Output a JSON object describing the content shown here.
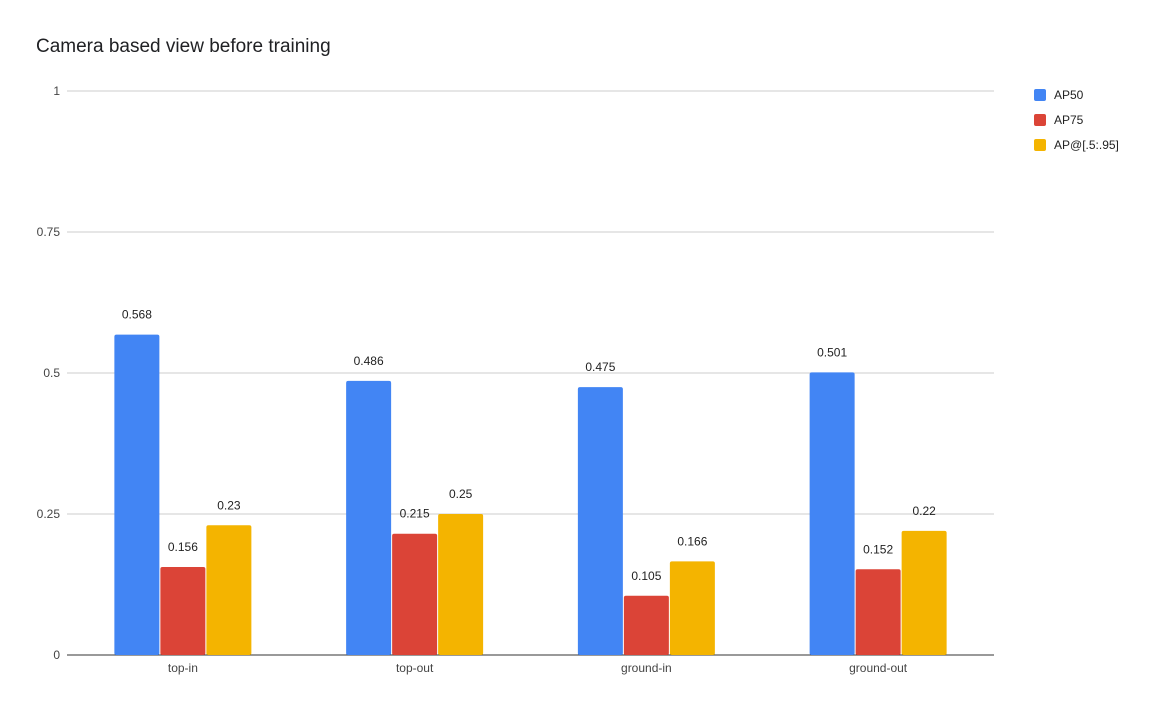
{
  "chart_data": {
    "type": "bar",
    "title": "Camera based view before training",
    "categories": [
      "top-in",
      "top-out",
      "ground-in",
      "ground-out"
    ],
    "series": [
      {
        "name": "AP50",
        "color": "#4285f4",
        "values": [
          0.568,
          0.486,
          0.475,
          0.501
        ]
      },
      {
        "name": "AP75",
        "color": "#db4437",
        "values": [
          0.156,
          0.215,
          0.105,
          0.152
        ]
      },
      {
        "name": "AP@[.5:.95]",
        "color": "#f4b400",
        "values": [
          0.23,
          0.25,
          0.166,
          0.22
        ]
      }
    ],
    "data_labels": [
      [
        "0.568",
        "0.486",
        "0.475",
        "0.501"
      ],
      [
        "0.156",
        "0.215",
        "0.105",
        "0.152"
      ],
      [
        "0.23",
        "0.25",
        "0.166",
        "0.22"
      ]
    ],
    "yticks": [
      {
        "value": 0,
        "label": "0"
      },
      {
        "value": 0.25,
        "label": "0.25"
      },
      {
        "value": 0.5,
        "label": "0.5"
      },
      {
        "value": 0.75,
        "label": "0.75"
      },
      {
        "value": 1,
        "label": "1"
      }
    ],
    "ylim": [
      0,
      1
    ],
    "grid": true,
    "legend_position": "right"
  }
}
